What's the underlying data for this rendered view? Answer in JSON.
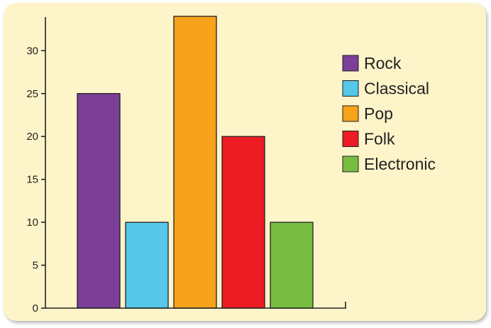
{
  "chart_data": {
    "type": "bar",
    "categories": [
      "Rock",
      "Classical",
      "Pop",
      "Folk",
      "Electronic"
    ],
    "values": [
      25,
      10,
      34,
      20,
      10
    ],
    "colors": [
      "#7b3f98",
      "#55c7e9",
      "#f7a21b",
      "#ed1c24",
      "#78bd42"
    ],
    "title": "",
    "xlabel": "",
    "ylabel": "",
    "ylim": [
      0,
      34
    ],
    "yticks": [
      0,
      5,
      10,
      15,
      20,
      25,
      30
    ],
    "ytick_labels": [
      "0",
      "5",
      "10",
      "15",
      "20",
      "25",
      "30"
    ],
    "grid": false,
    "legend": {
      "position": "top-right",
      "entries": [
        "Rock",
        "Classical",
        "Pop",
        "Folk",
        "Electronic"
      ]
    }
  },
  "background_color": "#fdf5c9"
}
